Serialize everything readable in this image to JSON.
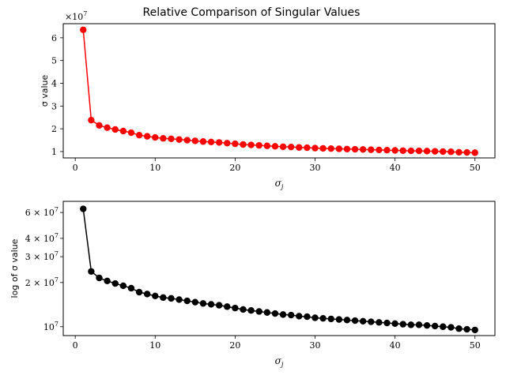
{
  "chart_data": [
    {
      "type": "line",
      "title": "Relative Comparison of Singular Values",
      "xlabel": "σ_j",
      "ylabel": "σ value",
      "y_offset_label": "×10^7",
      "color": "#ff0000",
      "marker": "circle",
      "x_ticks": [
        0,
        10,
        20,
        30,
        40,
        50
      ],
      "y_ticks": [
        1,
        2,
        3,
        4,
        5,
        6
      ],
      "xlim": [
        -1.5,
        52.5
      ],
      "ylim": [
        0.72,
        6.62
      ],
      "y_scale": "linear",
      "y_unit": 10000000,
      "grid": false,
      "series": [
        {
          "x": [
            1,
            2,
            3,
            4,
            5,
            6,
            7,
            8,
            9,
            10,
            11,
            12,
            13,
            14,
            15,
            16,
            17,
            18,
            19,
            20,
            21,
            22,
            23,
            24,
            25,
            26,
            27,
            28,
            29,
            30,
            31,
            32,
            33,
            34,
            35,
            36,
            37,
            38,
            39,
            40,
            41,
            42,
            43,
            44,
            45,
            46,
            47,
            48,
            49,
            50
          ],
          "values": [
            6.35,
            2.38,
            2.15,
            2.05,
            1.97,
            1.9,
            1.83,
            1.72,
            1.67,
            1.62,
            1.58,
            1.56,
            1.53,
            1.5,
            1.47,
            1.44,
            1.42,
            1.4,
            1.37,
            1.34,
            1.31,
            1.29,
            1.27,
            1.25,
            1.23,
            1.21,
            1.2,
            1.18,
            1.17,
            1.15,
            1.14,
            1.13,
            1.12,
            1.11,
            1.1,
            1.09,
            1.08,
            1.07,
            1.06,
            1.05,
            1.04,
            1.03,
            1.03,
            1.02,
            1.01,
            1.0,
            0.99,
            0.97,
            0.96,
            0.95
          ]
        }
      ]
    },
    {
      "type": "line",
      "title": "",
      "xlabel": "σ_j",
      "ylabel": "log of σ value",
      "color": "#000000",
      "marker": "circle",
      "x_ticks": [
        0,
        10,
        20,
        30,
        40,
        50
      ],
      "y_tick_labels": [
        {
          "value": 6,
          "text": "6 × 10^7"
        },
        {
          "value": 4,
          "text": "4 × 10^7"
        },
        {
          "value": 3,
          "text": "3 × 10^7"
        },
        {
          "value": 2,
          "text": "2 × 10^7"
        },
        {
          "value": 1,
          "text": "10^7"
        }
      ],
      "xlim": [
        -1.5,
        52.5
      ],
      "ylim": [
        0.87,
        7.15
      ],
      "y_scale": "log",
      "y_unit": 10000000,
      "grid": false,
      "series": [
        {
          "x": [
            1,
            2,
            3,
            4,
            5,
            6,
            7,
            8,
            9,
            10,
            11,
            12,
            13,
            14,
            15,
            16,
            17,
            18,
            19,
            20,
            21,
            22,
            23,
            24,
            25,
            26,
            27,
            28,
            29,
            30,
            31,
            32,
            33,
            34,
            35,
            36,
            37,
            38,
            39,
            40,
            41,
            42,
            43,
            44,
            45,
            46,
            47,
            48,
            49,
            50
          ],
          "values": [
            6.35,
            2.38,
            2.15,
            2.05,
            1.97,
            1.9,
            1.83,
            1.72,
            1.67,
            1.62,
            1.58,
            1.56,
            1.53,
            1.5,
            1.47,
            1.44,
            1.42,
            1.4,
            1.37,
            1.34,
            1.31,
            1.29,
            1.27,
            1.25,
            1.23,
            1.21,
            1.2,
            1.18,
            1.17,
            1.15,
            1.14,
            1.13,
            1.12,
            1.11,
            1.1,
            1.09,
            1.08,
            1.07,
            1.06,
            1.05,
            1.04,
            1.03,
            1.03,
            1.02,
            1.01,
            1.0,
            0.99,
            0.97,
            0.96,
            0.95
          ]
        }
      ]
    }
  ]
}
